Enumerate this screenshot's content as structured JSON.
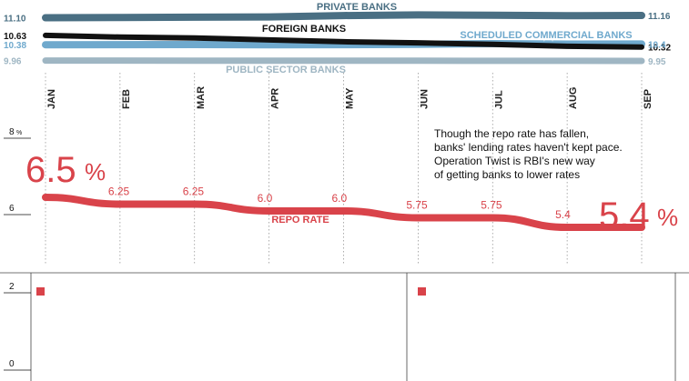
{
  "chart_data": [
    {
      "type": "line",
      "title": "",
      "x": [
        "JAN",
        "FEB",
        "MAR",
        "APR",
        "MAY",
        "JUN",
        "JUL",
        "AUG",
        "SEP"
      ],
      "series": [
        {
          "name": "PRIVATE BANKS",
          "color": "#4a6f83",
          "start": 11.1,
          "end": 11.16,
          "start_label": "11.10",
          "end_label": "11.16"
        },
        {
          "name": "FOREIGN BANKS",
          "color": "#111111",
          "start": 10.63,
          "end": 10.32,
          "start_label": "10.63",
          "end_label": "10.32"
        },
        {
          "name": "SCHEDULED COMMERCIAL BANKS",
          "color": "#6fa9cd",
          "start": 10.38,
          "end": 10.4,
          "start_label": "10.38",
          "end_label": "10.4"
        },
        {
          "name": "PUBLIC SECTOR BANKS",
          "color": "#9fb6c3",
          "start": 9.96,
          "end": 9.95,
          "start_label": "9.96",
          "end_label": "9.95"
        }
      ]
    },
    {
      "type": "line",
      "title": "",
      "x": [
        "JAN",
        "FEB",
        "MAR",
        "APR",
        "MAY",
        "JUN",
        "JUL",
        "AUG",
        "SEP"
      ],
      "series": [
        {
          "name": "REPO RATE",
          "color": "#d9434a",
          "values": [
            6.5,
            6.25,
            6.25,
            6.0,
            6.0,
            5.75,
            5.75,
            5.4,
            5.4
          ],
          "point_labels": [
            "6.5",
            "6.25",
            "6.25",
            "6.0",
            "6.0",
            "5.75",
            "5.75",
            "5.4",
            "5.4"
          ],
          "pct_sign": "%"
        }
      ],
      "yticks": [
        {
          "value": 8,
          "label": "8",
          "unit": "%"
        },
        {
          "value": 6,
          "label": "6",
          "unit": ""
        },
        {
          "value": 2,
          "label": "2",
          "unit": ""
        },
        {
          "value": 0,
          "label": "0",
          "unit": ""
        }
      ],
      "annotation": [
        "Though the repo rate has fallen,",
        "banks' lending rates haven't kept pace.",
        "Operation Twist is RBI's new way",
        "of getting banks to lower rates"
      ],
      "accent": "#d9434a"
    }
  ]
}
